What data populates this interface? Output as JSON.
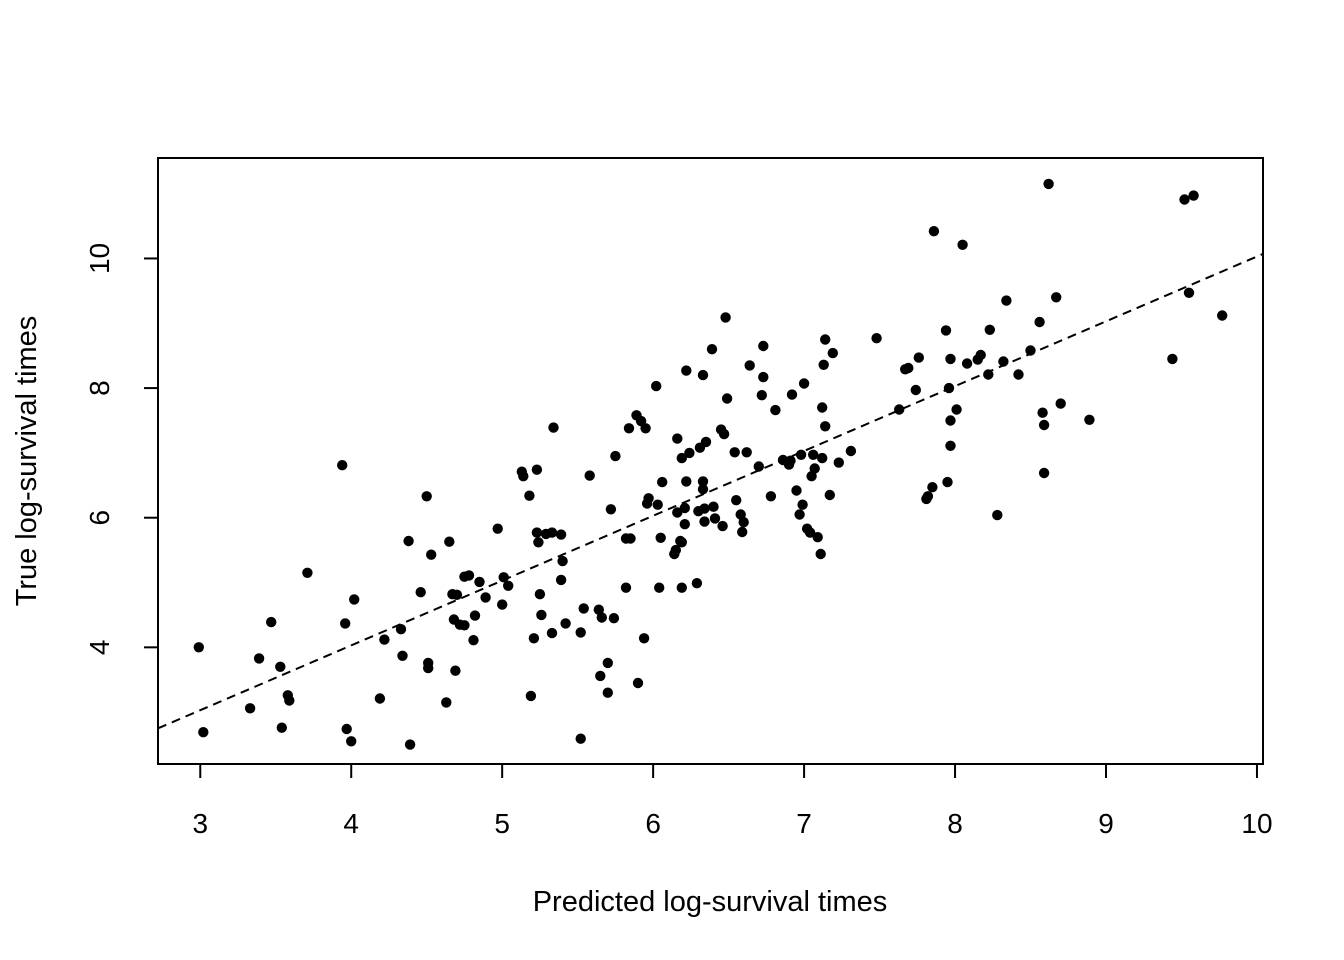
{
  "chart_data": {
    "type": "scatter",
    "title": "",
    "xlabel": "Predicted log-survival times",
    "ylabel": "True log-survival times",
    "xlim": [
      2.72,
      10.04
    ],
    "ylim": [
      2.2,
      11.55
    ],
    "xticks": [
      "3",
      "4",
      "5",
      "6",
      "7",
      "8",
      "9",
      "10"
    ],
    "yticks": [
      "4",
      "6",
      "8",
      "10"
    ],
    "grid": false,
    "legend": "none",
    "reference_line": {
      "style": "dashed",
      "slope": 1.0,
      "intercept": 0.03
    },
    "point_color": "#000000",
    "points": [
      [
        2.99,
        4.0
      ],
      [
        3.02,
        2.69
      ],
      [
        3.33,
        3.06
      ],
      [
        3.39,
        3.83
      ],
      [
        3.47,
        4.39
      ],
      [
        3.53,
        3.7
      ],
      [
        3.54,
        2.76
      ],
      [
        3.58,
        3.26
      ],
      [
        3.59,
        3.18
      ],
      [
        3.71,
        5.15
      ],
      [
        3.94,
        6.81
      ],
      [
        3.96,
        4.37
      ],
      [
        3.97,
        2.74
      ],
      [
        4.0,
        2.55
      ],
      [
        4.02,
        4.74
      ],
      [
        4.19,
        3.21
      ],
      [
        4.22,
        4.12
      ],
      [
        4.33,
        4.28
      ],
      [
        4.34,
        3.87
      ],
      [
        4.38,
        5.64
      ],
      [
        4.39,
        2.5
      ],
      [
        4.46,
        4.85
      ],
      [
        4.5,
        6.33
      ],
      [
        4.51,
        3.68
      ],
      [
        4.51,
        3.76
      ],
      [
        4.53,
        5.43
      ],
      [
        4.63,
        3.15
      ],
      [
        4.65,
        5.63
      ],
      [
        4.67,
        4.82
      ],
      [
        4.68,
        4.43
      ],
      [
        4.69,
        3.64
      ],
      [
        4.7,
        4.81
      ],
      [
        4.72,
        4.35
      ],
      [
        4.75,
        4.34
      ],
      [
        4.75,
        5.09
      ],
      [
        4.78,
        5.11
      ],
      [
        4.81,
        4.11
      ],
      [
        4.82,
        4.49
      ],
      [
        4.85,
        5.01
      ],
      [
        4.89,
        4.77
      ],
      [
        4.97,
        5.83
      ],
      [
        5.0,
        4.66
      ],
      [
        5.01,
        5.08
      ],
      [
        5.04,
        4.95
      ],
      [
        5.13,
        6.71
      ],
      [
        5.14,
        6.64
      ],
      [
        5.18,
        6.34
      ],
      [
        5.19,
        3.25
      ],
      [
        5.21,
        4.14
      ],
      [
        5.23,
        6.74
      ],
      [
        5.23,
        5.77
      ],
      [
        5.24,
        5.62
      ],
      [
        5.25,
        4.82
      ],
      [
        5.26,
        4.5
      ],
      [
        5.29,
        5.75
      ],
      [
        5.33,
        5.77
      ],
      [
        5.33,
        4.22
      ],
      [
        5.34,
        7.39
      ],
      [
        5.39,
        5.74
      ],
      [
        5.39,
        5.04
      ],
      [
        5.4,
        5.33
      ],
      [
        5.42,
        4.37
      ],
      [
        5.52,
        2.59
      ],
      [
        5.52,
        4.23
      ],
      [
        5.54,
        4.6
      ],
      [
        5.58,
        6.65
      ],
      [
        5.64,
        4.58
      ],
      [
        5.65,
        3.56
      ],
      [
        5.66,
        4.46
      ],
      [
        5.7,
        3.76
      ],
      [
        5.7,
        3.3
      ],
      [
        5.72,
        6.13
      ],
      [
        5.74,
        4.45
      ],
      [
        5.75,
        6.95
      ],
      [
        5.82,
        4.92
      ],
      [
        5.82,
        5.68
      ],
      [
        5.84,
        7.38
      ],
      [
        5.85,
        5.68
      ],
      [
        5.89,
        7.58
      ],
      [
        5.9,
        3.45
      ],
      [
        5.92,
        7.49
      ],
      [
        5.94,
        4.14
      ],
      [
        5.95,
        7.38
      ],
      [
        5.96,
        6.22
      ],
      [
        5.97,
        6.3
      ],
      [
        6.02,
        8.03
      ],
      [
        6.03,
        6.2
      ],
      [
        6.04,
        4.92
      ],
      [
        6.05,
        5.69
      ],
      [
        6.06,
        6.55
      ],
      [
        6.14,
        5.44
      ],
      [
        6.15,
        5.5
      ],
      [
        6.16,
        7.22
      ],
      [
        6.16,
        6.08
      ],
      [
        6.18,
        5.64
      ],
      [
        6.19,
        6.92
      ],
      [
        6.19,
        4.92
      ],
      [
        6.19,
        5.62
      ],
      [
        6.21,
        5.9
      ],
      [
        6.21,
        6.15
      ],
      [
        6.22,
        6.56
      ],
      [
        6.22,
        8.27
      ],
      [
        6.24,
        7.0
      ],
      [
        6.29,
        4.99
      ],
      [
        6.3,
        6.1
      ],
      [
        6.31,
        7.08
      ],
      [
        6.33,
        8.2
      ],
      [
        6.33,
        6.44
      ],
      [
        6.33,
        6.56
      ],
      [
        6.34,
        6.14
      ],
      [
        6.34,
        5.94
      ],
      [
        6.35,
        7.17
      ],
      [
        6.39,
        8.6
      ],
      [
        6.4,
        6.17
      ],
      [
        6.41,
        5.99
      ],
      [
        6.45,
        7.36
      ],
      [
        6.46,
        5.87
      ],
      [
        6.47,
        7.29
      ],
      [
        6.48,
        9.09
      ],
      [
        6.49,
        7.84
      ],
      [
        6.54,
        7.01
      ],
      [
        6.55,
        6.27
      ],
      [
        6.58,
        6.05
      ],
      [
        6.59,
        5.78
      ],
      [
        6.6,
        5.93
      ],
      [
        6.62,
        7.01
      ],
      [
        6.64,
        8.35
      ],
      [
        6.7,
        6.79
      ],
      [
        6.72,
        7.89
      ],
      [
        6.73,
        8.65
      ],
      [
        6.73,
        8.17
      ],
      [
        6.78,
        6.33
      ],
      [
        6.81,
        7.66
      ],
      [
        6.86,
        6.89
      ],
      [
        6.9,
        6.82
      ],
      [
        6.91,
        6.88
      ],
      [
        6.92,
        7.9
      ],
      [
        6.95,
        6.42
      ],
      [
        6.97,
        6.05
      ],
      [
        6.98,
        6.97
      ],
      [
        6.99,
        6.2
      ],
      [
        7.0,
        8.07
      ],
      [
        7.02,
        5.83
      ],
      [
        7.04,
        5.77
      ],
      [
        7.05,
        6.64
      ],
      [
        7.06,
        6.97
      ],
      [
        7.07,
        6.76
      ],
      [
        7.09,
        5.7
      ],
      [
        7.11,
        5.44
      ],
      [
        7.12,
        6.92
      ],
      [
        7.12,
        7.7
      ],
      [
        7.13,
        8.36
      ],
      [
        7.14,
        7.41
      ],
      [
        7.14,
        8.75
      ],
      [
        7.17,
        6.35
      ],
      [
        7.19,
        8.54
      ],
      [
        7.23,
        6.85
      ],
      [
        7.31,
        7.03
      ],
      [
        7.48,
        8.77
      ],
      [
        7.63,
        7.67
      ],
      [
        7.67,
        8.29
      ],
      [
        7.69,
        8.31
      ],
      [
        7.74,
        7.97
      ],
      [
        7.76,
        8.47
      ],
      [
        7.81,
        6.29
      ],
      [
        7.82,
        6.33
      ],
      [
        7.85,
        6.47
      ],
      [
        7.86,
        10.42
      ],
      [
        7.94,
        8.89
      ],
      [
        7.95,
        6.55
      ],
      [
        7.96,
        8.0
      ],
      [
        7.97,
        8.45
      ],
      [
        7.97,
        7.5
      ],
      [
        7.97,
        7.11
      ],
      [
        8.01,
        7.67
      ],
      [
        8.05,
        10.21
      ],
      [
        8.08,
        8.38
      ],
      [
        8.15,
        8.44
      ],
      [
        8.17,
        8.51
      ],
      [
        8.22,
        8.21
      ],
      [
        8.23,
        8.9
      ],
      [
        8.28,
        6.04
      ],
      [
        8.32,
        8.41
      ],
      [
        8.34,
        9.35
      ],
      [
        8.42,
        8.21
      ],
      [
        8.5,
        8.58
      ],
      [
        8.56,
        9.02
      ],
      [
        8.58,
        7.62
      ],
      [
        8.59,
        7.43
      ],
      [
        8.59,
        6.69
      ],
      [
        8.62,
        11.15
      ],
      [
        8.67,
        9.4
      ],
      [
        8.7,
        7.76
      ],
      [
        8.89,
        7.51
      ],
      [
        9.44,
        8.45
      ],
      [
        9.52,
        10.91
      ],
      [
        9.55,
        9.47
      ],
      [
        9.58,
        10.97
      ],
      [
        9.77,
        9.12
      ]
    ]
  }
}
